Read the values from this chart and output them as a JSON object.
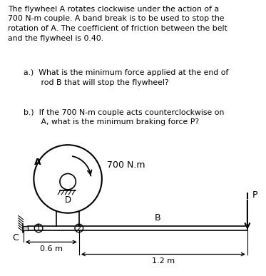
{
  "background_color": "#ffffff",
  "para_text": "The flywheel A rotates clockwise under the action of a\n700 N-m couple. A band break is to be used to stop the\nrotation of A. The coefficient of friction between the belt\nand the flywheel is 0.40.",
  "qa": "a.)  What is the minimum force applied at the end of\n       rod B that will stop the flywheel?",
  "qb": "b.)  If the 700 N-m couple acts counterclockwise on\n       A, what is the minimum braking force P?",
  "torque_label": "700 N.m",
  "label_A": "A",
  "label_D": "D",
  "label_C": "C",
  "label_B": "B",
  "label_P": "P",
  "label_1": "1",
  "label_2": "2",
  "dim_06": "0.6 m",
  "dim_12": "1.2 m",
  "line_color": "#000000"
}
